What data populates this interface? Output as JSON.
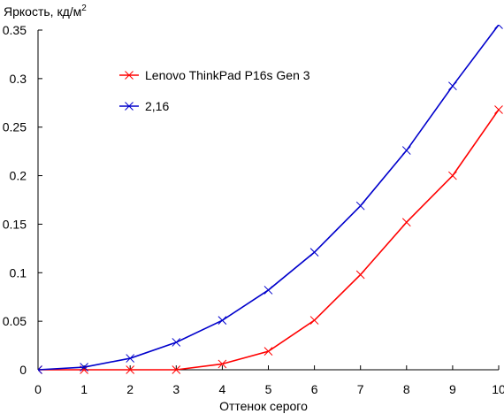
{
  "chart_data": {
    "type": "line",
    "title": "",
    "ylabel": "Яркость, кд/м",
    "ylabel_superscript": "2",
    "xlabel": "Оттенок серого",
    "xlim": [
      0,
      10
    ],
    "ylim": [
      0,
      0.35
    ],
    "x_ticks": [
      0,
      1,
      2,
      3,
      4,
      5,
      6,
      7,
      8,
      9,
      10
    ],
    "x_tick_labels": [
      "0",
      "1",
      "2",
      "3",
      "4",
      "5",
      "6",
      "7",
      "8",
      "9",
      "10"
    ],
    "y_ticks": [
      0,
      0.05,
      0.1,
      0.15,
      0.2,
      0.25,
      0.3,
      0.35
    ],
    "y_tick_labels": [
      "0",
      "0.05",
      "0.1",
      "0.15",
      "0.2",
      "0.25",
      "0.3",
      "0.35"
    ],
    "grid": false,
    "legend_position": "top-left",
    "x": [
      0,
      1,
      2,
      3,
      4,
      5,
      6,
      7,
      8,
      9,
      10
    ],
    "series": [
      {
        "name": "Lenovo ThinkPad P16s Gen 3",
        "color": "#ff0000",
        "marker": "x",
        "values": [
          0,
          0,
          0,
          0,
          0.006,
          0.019,
          0.051,
          0.098,
          0.152,
          0.2,
          0.268
        ]
      },
      {
        "name": "2,16",
        "color": "#0000cc",
        "marker": "x",
        "values": [
          0,
          0.0027,
          0.0118,
          0.0283,
          0.0509,
          0.0821,
          0.1211,
          0.1689,
          0.226,
          0.2924,
          0.3555
        ]
      }
    ]
  }
}
